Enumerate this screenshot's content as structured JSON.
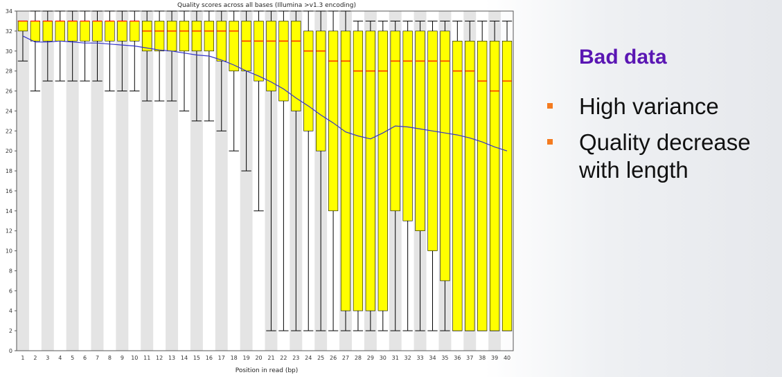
{
  "chart_data": {
    "type": "box",
    "title": "Quality scores across all bases (Illumina >v1.3 encoding)",
    "xlabel": "Position in read (bp)",
    "ylabel": "",
    "ylim": [
      0,
      34
    ],
    "yticks": [
      0,
      2,
      4,
      6,
      8,
      10,
      12,
      14,
      16,
      18,
      20,
      22,
      24,
      26,
      28,
      30,
      32,
      34
    ],
    "categories": [
      "1",
      "2",
      "3",
      "4",
      "5",
      "6",
      "7",
      "8",
      "9",
      "10",
      "11",
      "12",
      "13",
      "14",
      "15",
      "16",
      "17",
      "18",
      "19",
      "20",
      "21",
      "22",
      "23",
      "24",
      "25",
      "26",
      "27",
      "28",
      "29",
      "30",
      "31",
      "32",
      "33",
      "34",
      "35",
      "36",
      "37",
      "38",
      "39",
      "40"
    ],
    "q1": [
      32,
      31,
      31,
      31,
      31,
      31,
      31,
      31,
      31,
      31,
      30,
      30,
      30,
      30,
      30,
      30,
      29,
      28,
      28,
      27,
      26,
      25,
      24,
      22,
      20,
      14,
      4,
      4,
      4,
      4,
      14,
      13,
      12,
      10,
      7,
      2,
      2,
      2,
      2,
      2
    ],
    "median": [
      33,
      33,
      33,
      33,
      33,
      33,
      33,
      33,
      33,
      33,
      32,
      32,
      32,
      32,
      32,
      32,
      32,
      32,
      31,
      31,
      31,
      31,
      31,
      30,
      30,
      29,
      29,
      28,
      28,
      28,
      29,
      29,
      29,
      29,
      29,
      28,
      28,
      27,
      26,
      27
    ],
    "q3": [
      33,
      33,
      33,
      33,
      33,
      33,
      33,
      33,
      33,
      33,
      33,
      33,
      33,
      33,
      33,
      33,
      33,
      33,
      33,
      33,
      33,
      33,
      33,
      32,
      32,
      32,
      32,
      32,
      32,
      32,
      32,
      32,
      32,
      32,
      32,
      31,
      31,
      31,
      31,
      31
    ],
    "whisker_low": [
      29,
      26,
      27,
      27,
      27,
      27,
      27,
      26,
      26,
      26,
      25,
      25,
      25,
      24,
      23,
      23,
      22,
      20,
      18,
      14,
      2,
      2,
      2,
      2,
      2,
      2,
      2,
      2,
      2,
      2,
      2,
      2,
      2,
      2,
      2,
      2,
      2,
      2,
      2,
      2
    ],
    "whisker_high": [
      33,
      34,
      34,
      34,
      34,
      34,
      34,
      34,
      34,
      34,
      34,
      34,
      34,
      34,
      34,
      34,
      34,
      34,
      34,
      34,
      34,
      34,
      34,
      34,
      34,
      34,
      34,
      33,
      33,
      33,
      33,
      33,
      33,
      33,
      33,
      33,
      33,
      33,
      33,
      33
    ],
    "mean": [
      31.5,
      30.9,
      30.9,
      31.0,
      30.9,
      30.8,
      30.8,
      30.7,
      30.6,
      30.5,
      30.3,
      30.1,
      30.0,
      29.8,
      29.6,
      29.5,
      29.1,
      28.6,
      28.0,
      27.5,
      26.9,
      26.2,
      25.3,
      24.5,
      23.6,
      22.8,
      21.9,
      21.5,
      21.2,
      21.8,
      22.5,
      22.4,
      22.2,
      22.0,
      21.8,
      21.6,
      21.3,
      20.9,
      20.4,
      20.0
    ],
    "colors": {
      "box": "#ffff00",
      "box_border": "#000000",
      "median": "#ff0000",
      "mean": "#3333cc",
      "band": "#e4e4e4"
    },
    "grid": false
  },
  "sidebar": {
    "heading": "Bad data",
    "bullets": [
      "High variance",
      "Quality decrease with length"
    ],
    "colors": {
      "heading": "#5a16b3",
      "bullet": "#f47b20"
    }
  }
}
